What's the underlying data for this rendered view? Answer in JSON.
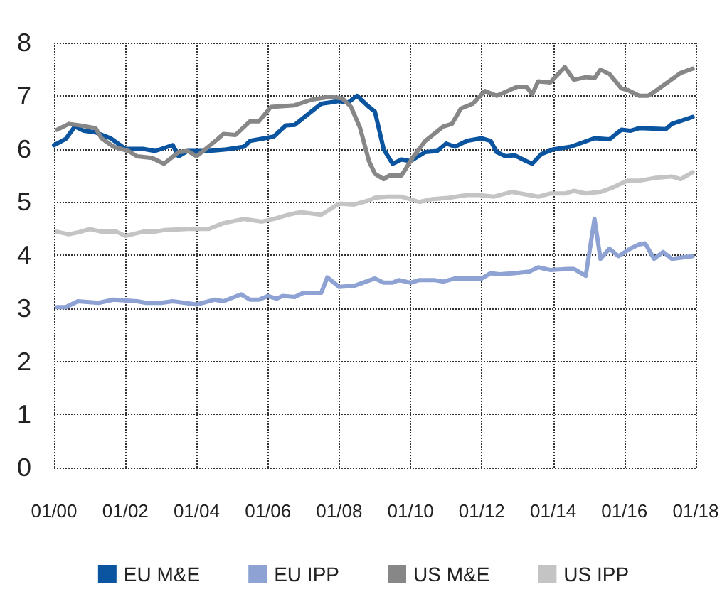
{
  "chart_data": {
    "type": "line",
    "xlim": [
      "2000-01",
      "2018-01"
    ],
    "ylim": [
      0,
      8
    ],
    "xticks": [
      {
        "value": "2000-01",
        "label": "01/00"
      },
      {
        "value": "2002-01",
        "label": "01/02"
      },
      {
        "value": "2004-01",
        "label": "01/04"
      },
      {
        "value": "2006-01",
        "label": "01/06"
      },
      {
        "value": "2008-01",
        "label": "01/08"
      },
      {
        "value": "2010-01",
        "label": "01/10"
      },
      {
        "value": "2012-01",
        "label": "01/12"
      },
      {
        "value": "2014-01",
        "label": "01/14"
      },
      {
        "value": "2016-01",
        "label": "01/16"
      },
      {
        "value": "2018-01",
        "label": "01/18"
      }
    ],
    "yticks": [
      0,
      1,
      2,
      3,
      4,
      5,
      6,
      7,
      8
    ],
    "grid": true,
    "legend": "bottom",
    "marker": "none",
    "line_style": "solid",
    "series": [
      {
        "name": "EU M&E",
        "color": "#0a54a0",
        "x": [
          "2000-01",
          "2000-05",
          "2000-08",
          "2000-11",
          "2001-03",
          "2001-08",
          "2002-01",
          "2002-07",
          "2002-11",
          "2003-05",
          "2003-07",
          "2003-10",
          "2004-05",
          "2004-11",
          "2005-05",
          "2005-07",
          "2006-03",
          "2006-07",
          "2006-10",
          "2007-07",
          "2008-01",
          "2008-04",
          "2008-07",
          "2008-11",
          "2009-01",
          "2009-04",
          "2009-07",
          "2009-10",
          "2010-01",
          "2010-06",
          "2010-10",
          "2011-01",
          "2011-04",
          "2011-08",
          "2012-01",
          "2012-04",
          "2012-06",
          "2012-09",
          "2012-12",
          "2013-04",
          "2013-06",
          "2013-09",
          "2014-01",
          "2014-07",
          "2015-03",
          "2015-08",
          "2015-12",
          "2016-03",
          "2016-06",
          "2017-03",
          "2017-05",
          "2017-12"
        ],
        "values": [
          6.07,
          6.19,
          6.42,
          6.34,
          6.31,
          6.2,
          6.0,
          6.0,
          5.96,
          6.07,
          5.86,
          5.96,
          5.96,
          5.99,
          6.04,
          6.15,
          6.23,
          6.44,
          6.45,
          6.85,
          6.9,
          6.87,
          7.0,
          6.79,
          6.7,
          5.99,
          5.72,
          5.8,
          5.77,
          5.94,
          5.96,
          6.1,
          6.04,
          6.15,
          6.2,
          6.15,
          5.94,
          5.86,
          5.88,
          5.77,
          5.72,
          5.9,
          5.99,
          6.04,
          6.2,
          6.18,
          6.36,
          6.34,
          6.39,
          6.37,
          6.47,
          6.6
        ]
      },
      {
        "name": "EU IPP",
        "color": "#8ea3d4",
        "x": [
          "2000-02",
          "2000-05",
          "2000-09",
          "2001-04",
          "2001-09",
          "2002-05",
          "2002-08",
          "2003-01",
          "2003-05",
          "2004-01",
          "2004-07",
          "2004-10",
          "2005-04",
          "2005-07",
          "2005-10",
          "2006-01",
          "2006-04",
          "2006-06",
          "2006-10",
          "2007-01",
          "2007-07",
          "2007-09",
          "2008-01",
          "2008-06",
          "2008-09",
          "2009-01",
          "2009-04",
          "2009-07",
          "2009-09",
          "2010-01",
          "2010-04",
          "2010-09",
          "2010-12",
          "2011-04",
          "2012-01",
          "2012-04",
          "2012-07",
          "2012-12",
          "2013-05",
          "2013-08",
          "2013-12",
          "2014-06",
          "2014-08",
          "2014-12",
          "2015-03",
          "2015-05",
          "2015-08",
          "2015-11",
          "2016-03",
          "2016-06",
          "2016-08",
          "2016-11",
          "2017-02",
          "2017-05",
          "2017-12"
        ],
        "values": [
          3.02,
          3.02,
          3.13,
          3.1,
          3.16,
          3.13,
          3.1,
          3.1,
          3.13,
          3.07,
          3.16,
          3.13,
          3.26,
          3.16,
          3.16,
          3.23,
          3.18,
          3.23,
          3.21,
          3.29,
          3.29,
          3.58,
          3.4,
          3.42,
          3.48,
          3.56,
          3.48,
          3.48,
          3.53,
          3.48,
          3.53,
          3.53,
          3.5,
          3.56,
          3.56,
          3.66,
          3.64,
          3.66,
          3.69,
          3.77,
          3.72,
          3.74,
          3.74,
          3.61,
          4.68,
          3.93,
          4.12,
          3.98,
          4.12,
          4.2,
          4.22,
          3.93,
          4.06,
          3.93,
          3.98
        ]
      },
      {
        "name": "US M&E",
        "color": "#878787",
        "x": [
          "2000-02",
          "2000-06",
          "2000-10",
          "2001-03",
          "2001-05",
          "2001-09",
          "2002-02",
          "2002-05",
          "2002-10",
          "2003-02",
          "2003-07",
          "2003-10",
          "2004-01",
          "2004-08",
          "2004-10",
          "2005-02",
          "2005-07",
          "2005-10",
          "2006-02",
          "2006-10",
          "2007-04",
          "2007-10",
          "2008-02",
          "2008-05",
          "2008-08",
          "2008-11",
          "2009-01",
          "2009-04",
          "2009-06",
          "2009-10",
          "2010-02",
          "2010-06",
          "2010-12",
          "2011-03",
          "2011-06",
          "2011-10",
          "2012-02",
          "2012-06",
          "2013-01",
          "2013-04",
          "2013-06",
          "2013-08",
          "2013-12",
          "2014-05",
          "2014-08",
          "2014-12",
          "2015-03",
          "2015-05",
          "2015-08",
          "2015-12",
          "2016-02",
          "2016-06",
          "2016-09",
          "2016-12",
          "2017-08",
          "2017-12"
        ],
        "values": [
          6.36,
          6.47,
          6.44,
          6.39,
          6.2,
          6.04,
          5.96,
          5.86,
          5.83,
          5.72,
          5.94,
          5.96,
          5.86,
          6.18,
          6.28,
          6.26,
          6.52,
          6.52,
          6.79,
          6.82,
          6.93,
          6.98,
          6.95,
          6.79,
          6.4,
          5.77,
          5.53,
          5.43,
          5.5,
          5.5,
          5.86,
          6.15,
          6.42,
          6.47,
          6.76,
          6.85,
          7.09,
          7.0,
          7.17,
          7.17,
          7.03,
          7.27,
          7.25,
          7.54,
          7.3,
          7.35,
          7.33,
          7.49,
          7.41,
          7.14,
          7.11,
          7.0,
          7.0,
          7.11,
          7.43,
          7.51
        ]
      },
      {
        "name": "US IPP",
        "color": "#c4c4c4",
        "x": [
          "2000-02",
          "2000-06",
          "2000-10",
          "2001-01",
          "2001-05",
          "2001-10",
          "2002-01",
          "2002-07",
          "2002-11",
          "2003-02",
          "2003-10",
          "2004-05",
          "2004-10",
          "2005-05",
          "2005-11",
          "2006-03",
          "2006-08",
          "2006-12",
          "2007-07",
          "2008-01",
          "2008-06",
          "2008-11",
          "2009-01",
          "2009-05",
          "2009-10",
          "2010-04",
          "2010-08",
          "2011-02",
          "2011-08",
          "2011-12",
          "2012-05",
          "2012-11",
          "2013-05",
          "2013-08",
          "2013-12",
          "2014-05",
          "2014-08",
          "2014-12",
          "2015-05",
          "2015-09",
          "2016-02",
          "2016-06",
          "2016-11",
          "2017-05",
          "2017-08",
          "2017-12"
        ],
        "values": [
          4.44,
          4.39,
          4.44,
          4.49,
          4.44,
          4.44,
          4.36,
          4.44,
          4.44,
          4.47,
          4.49,
          4.49,
          4.6,
          4.68,
          4.63,
          4.68,
          4.76,
          4.81,
          4.76,
          4.97,
          4.95,
          5.03,
          5.08,
          5.1,
          5.1,
          5.0,
          5.05,
          5.08,
          5.13,
          5.13,
          5.1,
          5.19,
          5.13,
          5.1,
          5.16,
          5.16,
          5.21,
          5.16,
          5.19,
          5.27,
          5.4,
          5.4,
          5.45,
          5.48,
          5.43,
          5.56
        ]
      }
    ]
  }
}
